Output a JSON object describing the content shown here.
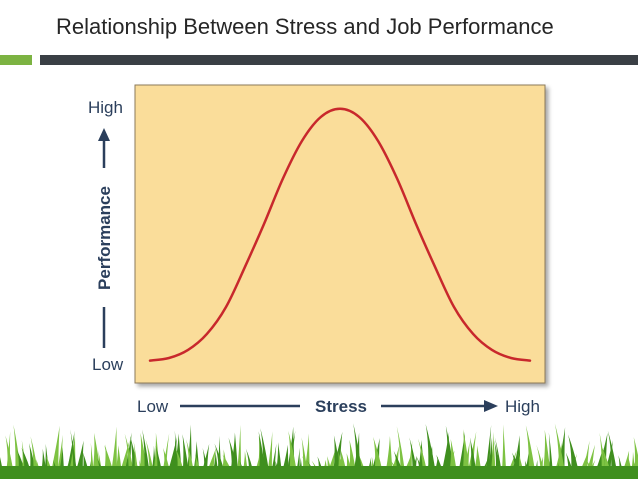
{
  "slide": {
    "title": "Relationship Between Stress and Job Performance"
  },
  "colors": {
    "title_rule_accent": "#7CB342",
    "title_rule_main": "#3A3F45",
    "plot_background": "#FADD9A",
    "plot_border": "#8C7A5A",
    "curve": "#C8282C",
    "axis_text": "#2B3F5C",
    "arrow": "#2B3F5C",
    "grass_dark": "#3F8F1E",
    "grass_light": "#7DC242"
  },
  "chart_data": {
    "type": "line",
    "title": "",
    "xlabel": "Stress",
    "ylabel": "Performance",
    "x_tick_labels": [
      "Low",
      "High"
    ],
    "y_tick_labels": [
      "Low",
      "High"
    ],
    "xlim": [
      0,
      100
    ],
    "ylim": [
      0,
      100
    ],
    "grid": false,
    "legend": "none",
    "series": [
      {
        "x": [
          0,
          5,
          10,
          15,
          20,
          25,
          30,
          35,
          40,
          45,
          50,
          55,
          60,
          65,
          70,
          75,
          80,
          85,
          90,
          95,
          100
        ],
        "y": [
          2,
          3,
          6,
          12,
          22,
          37,
          53,
          70,
          84,
          93,
          96,
          93,
          84,
          70,
          53,
          37,
          22,
          12,
          6,
          3,
          2
        ]
      }
    ]
  }
}
